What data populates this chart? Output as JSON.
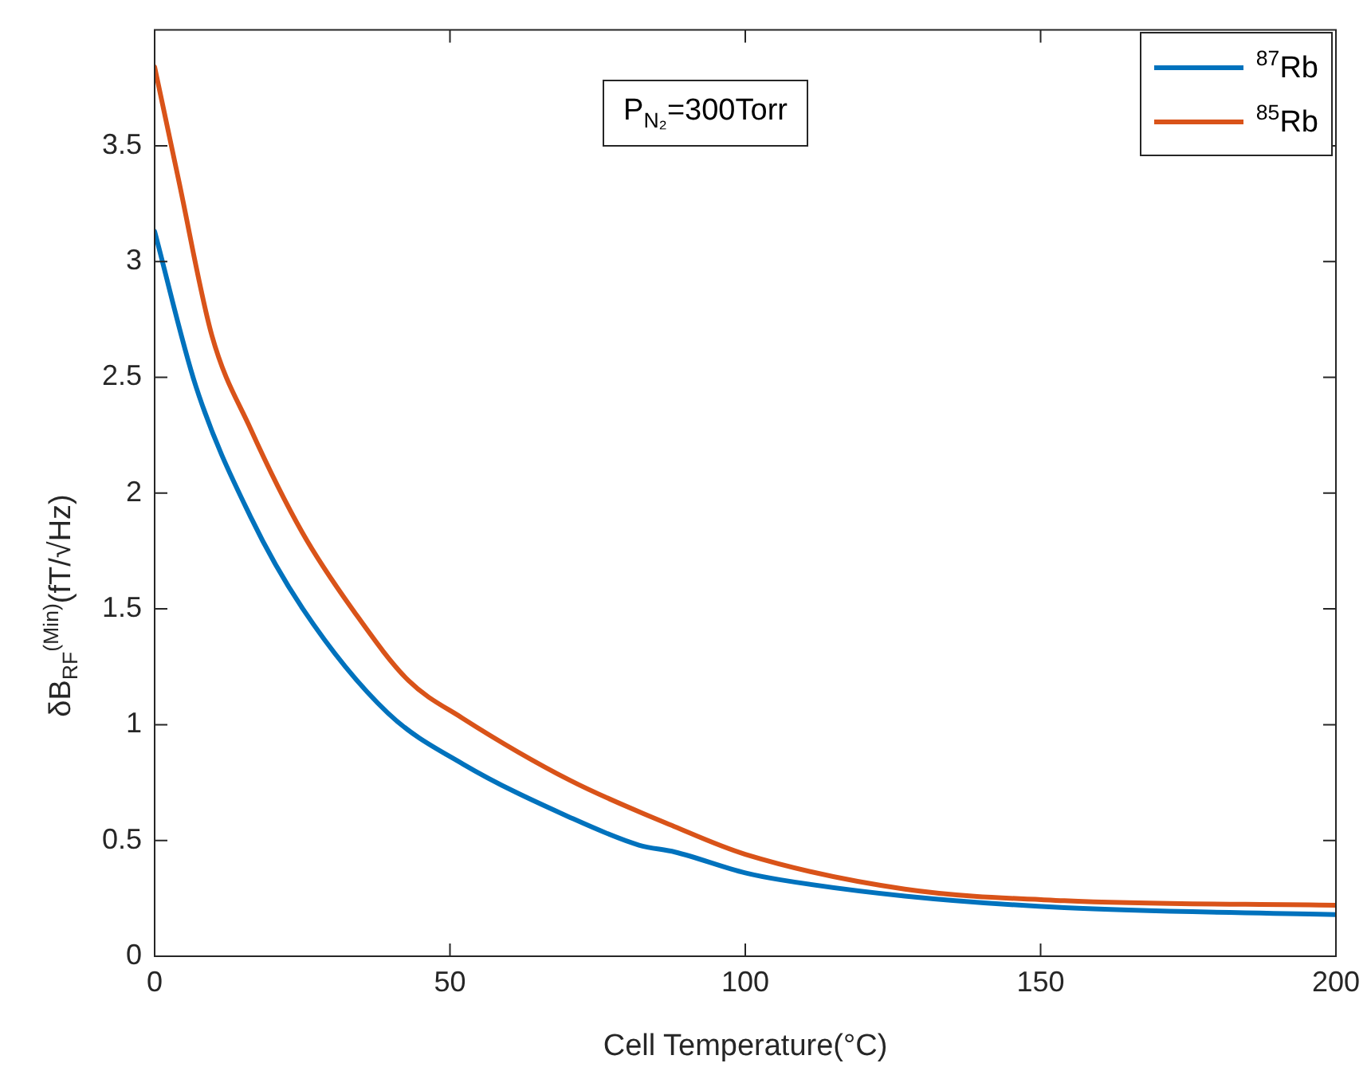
{
  "chart_data": {
    "type": "line",
    "xlabel": "Cell Temperature(°C)",
    "ylabel": "δB$_{RF}$$^{(Min)}$(fT/√Hz)",
    "xlim": [
      0,
      200
    ],
    "xticks": [
      0,
      50,
      100,
      150,
      200
    ],
    "ylim": [
      0,
      4
    ],
    "yticks": [
      0,
      0.5,
      1,
      1.5,
      2,
      2.5,
      3,
      3.5
    ],
    "annotations": [
      "P$_{N₂}$=300Torr"
    ],
    "legend": "top right",
    "grid": false,
    "marker": "none",
    "line_style": "solid",
    "series": [
      {
        "name": "$^{87}$Rb",
        "color": "#0072bd",
        "x": [
          0,
          7,
          16.2,
          25.1,
          39.5,
          52.2,
          70.3,
          82,
          88.1,
          100,
          106,
          127,
          154,
          200
        ],
        "values": [
          3.13,
          2.46,
          1.9,
          1.5,
          1.05,
          0.83,
          0.6,
          0.48,
          0.45,
          0.36,
          0.33,
          0.26,
          0.21,
          0.18
        ]
      },
      {
        "name": "$^{85}$Rb",
        "color": "#d95319",
        "x": [
          0,
          4,
          9.7,
          16.2,
          25,
          34,
          43,
          52,
          70.3,
          88,
          100,
          127,
          154,
          200
        ],
        "values": [
          3.84,
          3.36,
          2.68,
          2.28,
          1.83,
          1.48,
          1.19,
          1.03,
          0.76,
          0.56,
          0.44,
          0.29,
          0.24,
          0.22
        ]
      }
    ]
  }
}
